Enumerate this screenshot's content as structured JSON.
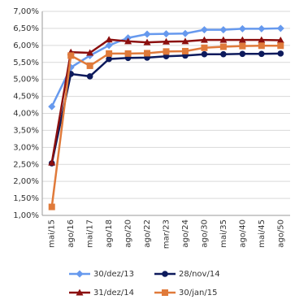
{
  "chart_data": {
    "type": "line",
    "categories": [
      "mai/15",
      "ago/16",
      "mai/17",
      "ago/18",
      "ago/20",
      "ago/22",
      "mar/23",
      "ago/24",
      "ago/30",
      "mai/35",
      "ago/40",
      "mai/45",
      "ago/50"
    ],
    "series": [
      {
        "name": "30/dez/13",
        "color": "#6699ee",
        "marker": "diamond",
        "values": [
          4.2,
          5.35,
          5.7,
          6.0,
          6.22,
          6.33,
          6.34,
          6.35,
          6.46,
          6.46,
          6.49,
          6.49,
          6.5
        ]
      },
      {
        "name": "28/nov/14",
        "color": "#0d1a5c",
        "marker": "circle",
        "values": [
          2.53,
          5.16,
          5.09,
          5.6,
          5.63,
          5.64,
          5.68,
          5.7,
          5.74,
          5.74,
          5.75,
          5.75,
          5.76
        ]
      },
      {
        "name": "31/dez/14",
        "color": "#8b0f0f",
        "marker": "triangle",
        "values": [
          2.55,
          5.8,
          5.78,
          6.17,
          6.12,
          6.09,
          6.11,
          6.12,
          6.16,
          6.16,
          6.16,
          6.16,
          6.15
        ]
      },
      {
        "name": "30/jan/15",
        "color": "#e07a3a",
        "marker": "square",
        "values": [
          1.25,
          5.7,
          5.4,
          5.76,
          5.76,
          5.77,
          5.82,
          5.83,
          5.93,
          5.96,
          5.98,
          5.99,
          5.99
        ]
      }
    ],
    "ylim": [
      1.0,
      7.0
    ],
    "yticks": [
      {
        "value": 1.0,
        "label": "1,00%"
      },
      {
        "value": 1.5,
        "label": "1,50%"
      },
      {
        "value": 2.0,
        "label": "2,00%"
      },
      {
        "value": 2.5,
        "label": "2,50%"
      },
      {
        "value": 3.0,
        "label": "3,00%"
      },
      {
        "value": 3.5,
        "label": "3,50%"
      },
      {
        "value": 4.0,
        "label": "4,00%"
      },
      {
        "value": 4.5,
        "label": "4,50%"
      },
      {
        "value": 5.0,
        "label": "5,00%"
      },
      {
        "value": 5.5,
        "label": "5,50%"
      },
      {
        "value": 6.0,
        "label": "6,00%"
      },
      {
        "value": 6.5,
        "label": "6,50%"
      },
      {
        "value": 7.0,
        "label": "7,00%"
      }
    ],
    "grid": true
  }
}
